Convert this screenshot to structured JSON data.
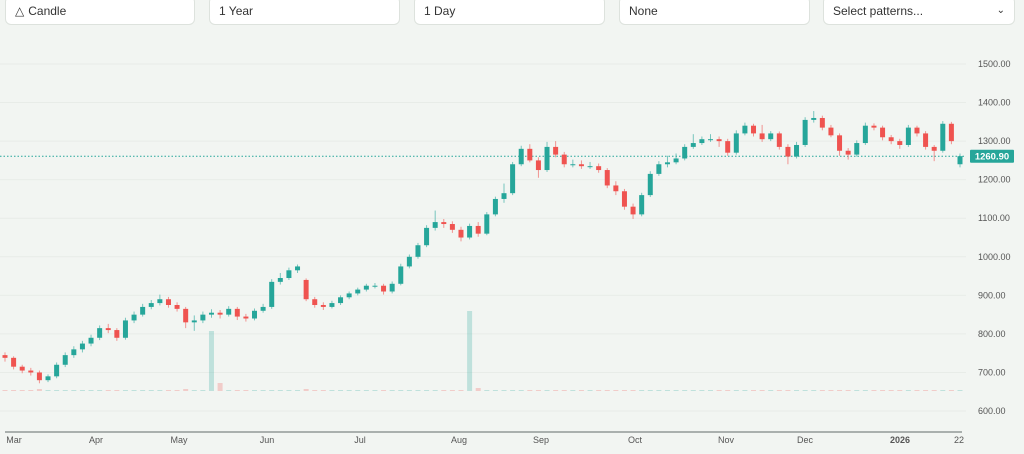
{
  "toolbar": {
    "chart_type": {
      "label": "Candle",
      "icon": "candle-icon"
    },
    "range": {
      "label": "1 Year"
    },
    "interval": {
      "label": "1 Day"
    },
    "indicator": {
      "label": "None"
    },
    "patterns": {
      "label": "Select patterns...",
      "icon": "chevron-down-icon"
    }
  },
  "chart_data": {
    "type": "candlestick",
    "title": "",
    "xlabel": "",
    "ylabel": "",
    "ylim": [
      600,
      1500
    ],
    "y_ticks": [
      "1500.00",
      "1400.00",
      "1300.00",
      "1200.00",
      "1100.00",
      "1000.00",
      "900.00",
      "800.00",
      "700.00",
      "600.00"
    ],
    "x_ticks": [
      "Mar",
      "Apr",
      "May",
      "Jun",
      "Jul",
      "Aug",
      "Sep",
      "Oct",
      "Nov",
      "Dec",
      "2026",
      "22"
    ],
    "grid": true,
    "last_price": "1260.90",
    "last_price_value": 1260.9,
    "colors": {
      "up": "#26a69a",
      "down": "#ef5350",
      "last_price_label": "#26a69a"
    },
    "candles": [
      [
        745,
        752,
        728,
        738
      ],
      [
        738,
        742,
        708,
        715
      ],
      [
        715,
        720,
        698,
        705
      ],
      [
        705,
        712,
        692,
        700
      ],
      [
        700,
        705,
        672,
        680
      ],
      [
        680,
        695,
        675,
        690
      ],
      [
        690,
        726,
        685,
        720
      ],
      [
        720,
        752,
        714,
        745
      ],
      [
        745,
        768,
        738,
        760
      ],
      [
        760,
        782,
        752,
        775
      ],
      [
        775,
        798,
        768,
        790
      ],
      [
        790,
        822,
        784,
        815
      ],
      [
        815,
        826,
        802,
        810
      ],
      [
        810,
        815,
        782,
        790
      ],
      [
        790,
        842,
        785,
        835
      ],
      [
        835,
        858,
        828,
        850
      ],
      [
        850,
        878,
        845,
        870
      ],
      [
        870,
        888,
        864,
        880
      ],
      [
        880,
        902,
        874,
        890
      ],
      [
        890,
        896,
        868,
        875
      ],
      [
        875,
        882,
        858,
        865
      ],
      [
        865,
        870,
        815,
        830
      ],
      [
        830,
        848,
        808,
        835
      ],
      [
        835,
        858,
        828,
        850
      ],
      [
        850,
        864,
        842,
        855
      ],
      [
        855,
        862,
        840,
        850
      ],
      [
        850,
        872,
        845,
        865
      ],
      [
        865,
        870,
        836,
        845
      ],
      [
        845,
        852,
        832,
        840
      ],
      [
        840,
        866,
        835,
        860
      ],
      [
        860,
        878,
        855,
        870
      ],
      [
        870,
        942,
        865,
        935
      ],
      [
        935,
        958,
        928,
        945
      ],
      [
        945,
        972,
        940,
        965
      ],
      [
        965,
        980,
        958,
        975
      ],
      [
        940,
        944,
        885,
        890
      ],
      [
        890,
        896,
        868,
        875
      ],
      [
        875,
        882,
        862,
        870
      ],
      [
        870,
        886,
        866,
        880
      ],
      [
        880,
        900,
        875,
        895
      ],
      [
        895,
        910,
        890,
        905
      ],
      [
        905,
        920,
        900,
        915
      ],
      [
        915,
        930,
        910,
        925
      ],
      [
        925,
        932,
        918,
        925
      ],
      [
        925,
        930,
        902,
        910
      ],
      [
        910,
        936,
        905,
        930
      ],
      [
        930,
        982,
        926,
        975
      ],
      [
        975,
        1006,
        970,
        1000
      ],
      [
        1000,
        1036,
        995,
        1030
      ],
      [
        1030,
        1082,
        1025,
        1075
      ],
      [
        1075,
        1120,
        1068,
        1090
      ],
      [
        1090,
        1098,
        1075,
        1085
      ],
      [
        1085,
        1092,
        1062,
        1070
      ],
      [
        1070,
        1078,
        1040,
        1050
      ],
      [
        1050,
        1086,
        1045,
        1080
      ],
      [
        1080,
        1090,
        1052,
        1060
      ],
      [
        1060,
        1116,
        1056,
        1110
      ],
      [
        1110,
        1156,
        1105,
        1150
      ],
      [
        1150,
        1190,
        1140,
        1165
      ],
      [
        1165,
        1246,
        1160,
        1240
      ],
      [
        1240,
        1288,
        1235,
        1280
      ],
      [
        1280,
        1292,
        1245,
        1250
      ],
      [
        1250,
        1258,
        1205,
        1225
      ],
      [
        1225,
        1298,
        1220,
        1285
      ],
      [
        1285,
        1300,
        1258,
        1265
      ],
      [
        1265,
        1272,
        1232,
        1240
      ],
      [
        1240,
        1252,
        1232,
        1240
      ],
      [
        1240,
        1250,
        1228,
        1235
      ],
      [
        1235,
        1246,
        1228,
        1235
      ],
      [
        1235,
        1242,
        1218,
        1225
      ],
      [
        1225,
        1230,
        1178,
        1185
      ],
      [
        1185,
        1196,
        1160,
        1170
      ],
      [
        1170,
        1176,
        1122,
        1130
      ],
      [
        1130,
        1138,
        1098,
        1110
      ],
      [
        1110,
        1166,
        1105,
        1160
      ],
      [
        1160,
        1222,
        1155,
        1215
      ],
      [
        1215,
        1248,
        1210,
        1240
      ],
      [
        1240,
        1262,
        1232,
        1245
      ],
      [
        1245,
        1268,
        1240,
        1255
      ],
      [
        1255,
        1292,
        1250,
        1285
      ],
      [
        1285,
        1318,
        1280,
        1295
      ],
      [
        1295,
        1312,
        1290,
        1305
      ],
      [
        1305,
        1318,
        1298,
        1305
      ],
      [
        1305,
        1312,
        1285,
        1300
      ],
      [
        1300,
        1306,
        1262,
        1270
      ],
      [
        1270,
        1328,
        1265,
        1320
      ],
      [
        1320,
        1348,
        1315,
        1340
      ],
      [
        1340,
        1345,
        1312,
        1320
      ],
      [
        1320,
        1342,
        1298,
        1305
      ],
      [
        1305,
        1326,
        1300,
        1320
      ],
      [
        1320,
        1325,
        1278,
        1285
      ],
      [
        1285,
        1292,
        1240,
        1260
      ],
      [
        1260,
        1298,
        1255,
        1290
      ],
      [
        1290,
        1362,
        1285,
        1355
      ],
      [
        1355,
        1378,
        1348,
        1360
      ],
      [
        1360,
        1366,
        1328,
        1335
      ],
      [
        1335,
        1342,
        1310,
        1315
      ],
      [
        1315,
        1320,
        1262,
        1275
      ],
      [
        1275,
        1282,
        1252,
        1265
      ],
      [
        1265,
        1302,
        1260,
        1295
      ],
      [
        1295,
        1348,
        1290,
        1340
      ],
      [
        1340,
        1346,
        1328,
        1335
      ],
      [
        1335,
        1340,
        1302,
        1310
      ],
      [
        1310,
        1316,
        1292,
        1300
      ],
      [
        1300,
        1306,
        1280,
        1290
      ],
      [
        1290,
        1342,
        1285,
        1335
      ],
      [
        1335,
        1340,
        1312,
        1320
      ],
      [
        1320,
        1326,
        1278,
        1285
      ],
      [
        1285,
        1290,
        1248,
        1275
      ],
      [
        1275,
        1352,
        1270,
        1345
      ],
      [
        1345,
        1350,
        1292,
        1300
      ],
      [
        1240,
        1268,
        1232,
        1260.9
      ]
    ],
    "volume": [
      1,
      1,
      1,
      1,
      2,
      1,
      1,
      1,
      1,
      1,
      1,
      1,
      1,
      1,
      1,
      1,
      1,
      1,
      1,
      1,
      1,
      2,
      1,
      1,
      60,
      8,
      1,
      1,
      1,
      1,
      1,
      1,
      1,
      1,
      1,
      2,
      1,
      1,
      1,
      1,
      1,
      1,
      1,
      1,
      1,
      1,
      1,
      1,
      1,
      1,
      1,
      1,
      1,
      1,
      80,
      3,
      1,
      1,
      1,
      1,
      1,
      1,
      1,
      1,
      1,
      1,
      1,
      1,
      1,
      1,
      1,
      1,
      1,
      1,
      1,
      1,
      1,
      1,
      1,
      1,
      1,
      1,
      1,
      1,
      1,
      1,
      1,
      1,
      1,
      1,
      1,
      1,
      1,
      1,
      1,
      1,
      1,
      1,
      1,
      1,
      1,
      1,
      1,
      1,
      1,
      1,
      1,
      1,
      1,
      1,
      1,
      1
    ]
  }
}
